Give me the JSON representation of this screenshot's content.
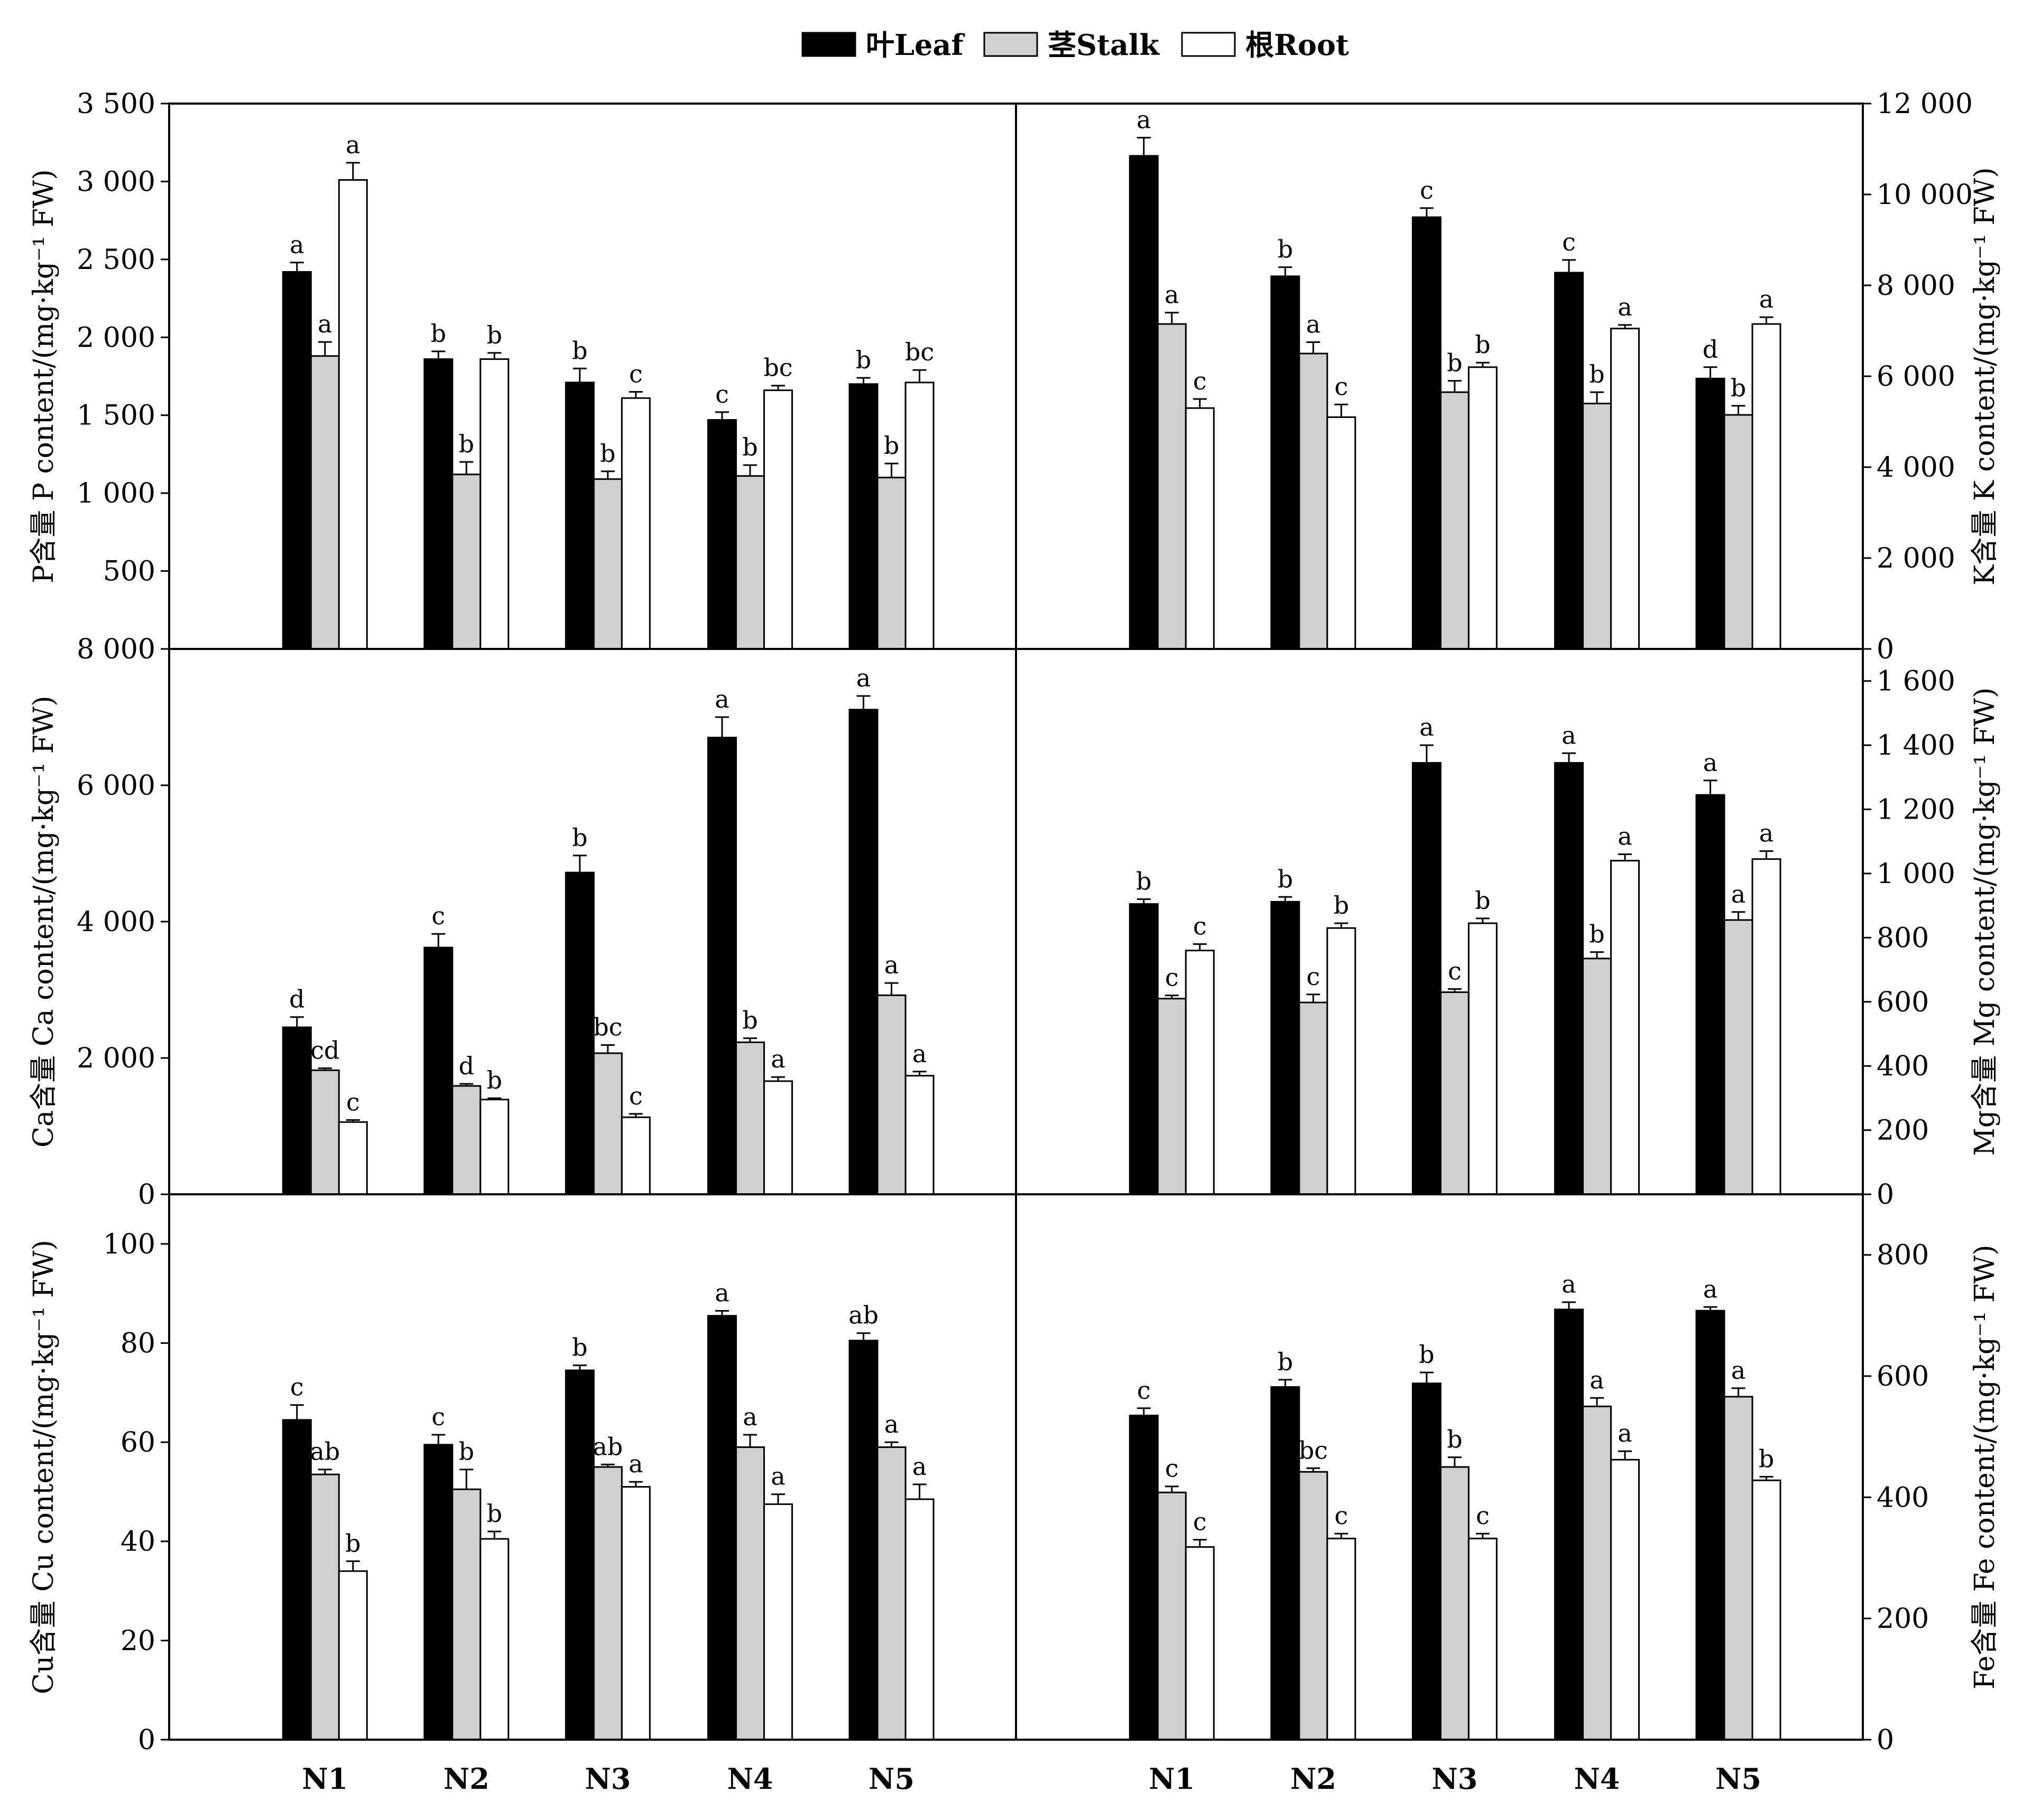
{
  "legend": [
    {
      "label": "叶Leaf",
      "color": "#000000"
    },
    {
      "label": "茎Stalk",
      "color": "#d0d0d0"
    },
    {
      "label": "根Root",
      "color": "#ffffff"
    }
  ],
  "categories": [
    "N1",
    "N2",
    "N3",
    "N4",
    "N5"
  ],
  "chart_data": [
    {
      "type": "bar",
      "panel": "P",
      "axis_side": "left",
      "ylabel": "P含量 P content/(mg·kg⁻¹ FW)",
      "ylim": [
        0,
        3500
      ],
      "ticks": [
        0,
        500,
        1000,
        1500,
        2000,
        2500,
        3000,
        3500
      ],
      "tick_labels": [
        "0",
        "500",
        "1 000",
        "1 500",
        "2 000",
        "2 500",
        "3 000",
        "3 500"
      ],
      "categories": [
        "N1",
        "N2",
        "N3",
        "N4",
        "N5"
      ],
      "series": [
        {
          "name": "叶Leaf",
          "values": [
            2420,
            1860,
            1710,
            1470,
            1700
          ],
          "errors": [
            60,
            50,
            90,
            50,
            40
          ],
          "sig": [
            "a",
            "b",
            "b",
            "c",
            "b"
          ]
        },
        {
          "name": "茎Stalk",
          "values": [
            1880,
            1120,
            1090,
            1110,
            1100
          ],
          "errors": [
            90,
            80,
            50,
            70,
            90
          ],
          "sig": [
            "a",
            "b",
            "b",
            "b",
            "b"
          ]
        },
        {
          "name": "根Root",
          "values": [
            3010,
            1860,
            1610,
            1660,
            1710
          ],
          "errors": [
            110,
            40,
            40,
            30,
            80
          ],
          "sig": [
            "a",
            "b",
            "c",
            "bc",
            "bc"
          ]
        }
      ]
    },
    {
      "type": "bar",
      "panel": "K",
      "axis_side": "right",
      "ylabel": "K含量 K content/(mg·kg⁻¹ FW)",
      "ylim": [
        0,
        12000
      ],
      "ticks": [
        0,
        2000,
        4000,
        6000,
        8000,
        10000,
        12000
      ],
      "tick_labels": [
        "0",
        "2 000",
        "4 000",
        "6 000",
        "8 000",
        "10 000",
        "12 000"
      ],
      "categories": [
        "N1",
        "N2",
        "N3",
        "N4",
        "N5"
      ],
      "series": [
        {
          "name": "叶Leaf",
          "values": [
            10850,
            8200,
            9500,
            8280,
            5950
          ],
          "errors": [
            400,
            200,
            200,
            280,
            250
          ],
          "sig": [
            "a",
            "b",
            "c",
            "c",
            "d"
          ]
        },
        {
          "name": "茎Stalk",
          "values": [
            7150,
            6500,
            5650,
            5400,
            5150
          ],
          "errors": [
            250,
            250,
            250,
            250,
            200
          ],
          "sig": [
            "a",
            "a",
            "b",
            "b",
            "b"
          ]
        },
        {
          "name": "根Root",
          "values": [
            5300,
            5100,
            6200,
            7050,
            7150
          ],
          "errors": [
            200,
            280,
            100,
            80,
            150
          ],
          "sig": [
            "c",
            "c",
            "b",
            "a",
            "a"
          ]
        }
      ]
    },
    {
      "type": "bar",
      "panel": "Ca",
      "axis_side": "left",
      "ylabel": "Ca含量 Ca content/(mg·kg⁻¹ FW)",
      "ylim": [
        0,
        8000
      ],
      "ticks": [
        0,
        2000,
        4000,
        6000,
        8000
      ],
      "tick_labels": [
        "0",
        "2 000",
        "4 000",
        "6 000",
        "8 000"
      ],
      "categories": [
        "N1",
        "N2",
        "N3",
        "N4",
        "N5"
      ],
      "series": [
        {
          "name": "叶Leaf",
          "values": [
            2450,
            3620,
            4720,
            6700,
            7110
          ],
          "errors": [
            150,
            200,
            250,
            300,
            200
          ],
          "sig": [
            "d",
            "c",
            "b",
            "a",
            "a"
          ]
        },
        {
          "name": "茎Stalk",
          "values": [
            1820,
            1590,
            2070,
            2230,
            2920
          ],
          "errors": [
            30,
            30,
            120,
            60,
            180
          ],
          "sig": [
            "cd",
            "d",
            "bc",
            "b",
            "a"
          ]
        },
        {
          "name": "根Root",
          "values": [
            1060,
            1390,
            1130,
            1660,
            1740
          ],
          "errors": [
            30,
            20,
            50,
            60,
            60
          ],
          "sig": [
            "c",
            "b",
            "c",
            "a",
            "a"
          ]
        }
      ]
    },
    {
      "type": "bar",
      "panel": "Mg",
      "axis_side": "right",
      "ylabel": "Mg含量 Mg content/(mg·kg⁻¹ FW)",
      "ylim": [
        0,
        1700
      ],
      "ticks": [
        0,
        200,
        400,
        600,
        800,
        1000,
        1200,
        1400,
        1600
      ],
      "tick_labels": [
        "0",
        "200",
        "400",
        "600",
        "800",
        "1 000",
        "1 200",
        "1 400",
        "1 600"
      ],
      "categories": [
        "N1",
        "N2",
        "N3",
        "N4",
        "N5"
      ],
      "series": [
        {
          "name": "叶Leaf",
          "values": [
            905,
            912,
            1345,
            1345,
            1245
          ],
          "errors": [
            15,
            15,
            55,
            30,
            45
          ],
          "sig": [
            "b",
            "b",
            "a",
            "a",
            "a"
          ]
        },
        {
          "name": "茎Stalk",
          "values": [
            610,
            598,
            630,
            735,
            855
          ],
          "errors": [
            10,
            25,
            10,
            20,
            25
          ],
          "sig": [
            "c",
            "c",
            "c",
            "b",
            "a"
          ]
        },
        {
          "name": "根Root",
          "values": [
            760,
            830,
            845,
            1040,
            1045
          ],
          "errors": [
            20,
            15,
            15,
            20,
            25
          ],
          "sig": [
            "c",
            "b",
            "b",
            "a",
            "a"
          ]
        }
      ]
    },
    {
      "type": "bar",
      "panel": "Cu",
      "axis_side": "left",
      "ylabel": "Cu含量 Cu content/(mg·kg⁻¹ FW)",
      "ylim": [
        0,
        110
      ],
      "ticks": [
        0,
        20,
        40,
        60,
        80,
        100
      ],
      "tick_labels": [
        "0",
        "20",
        "40",
        "60",
        "80",
        "100"
      ],
      "categories": [
        "N1",
        "N2",
        "N3",
        "N4",
        "N5"
      ],
      "series": [
        {
          "name": "叶Leaf",
          "values": [
            64.5,
            59.5,
            74.5,
            85.5,
            80.5
          ],
          "errors": [
            3.0,
            2.0,
            1.0,
            1.0,
            1.5
          ],
          "sig": [
            "c",
            "c",
            "b",
            "a",
            "ab"
          ]
        },
        {
          "name": "茎Stalk",
          "values": [
            53.5,
            50.5,
            55.0,
            59.0,
            59.0
          ],
          "errors": [
            1.0,
            4.0,
            0.5,
            2.5,
            1.0
          ],
          "sig": [
            "ab",
            "b",
            "ab",
            "a",
            "a"
          ]
        },
        {
          "name": "根Root",
          "values": [
            34.0,
            40.5,
            51.0,
            47.5,
            48.5
          ],
          "errors": [
            2.0,
            1.5,
            1.0,
            2.0,
            3.0
          ],
          "sig": [
            "b",
            "b",
            "a",
            "a",
            "a"
          ]
        }
      ]
    },
    {
      "type": "bar",
      "panel": "Fe",
      "axis_side": "right",
      "ylabel": "Fe含量 Fe content/(mg·kg⁻¹ FW)",
      "ylim": [
        0,
        900
      ],
      "ticks": [
        0,
        200,
        400,
        600,
        800
      ],
      "tick_labels": [
        "0",
        "200",
        "400",
        "600",
        "800"
      ],
      "categories": [
        "N1",
        "N2",
        "N3",
        "N4",
        "N5"
      ],
      "series": [
        {
          "name": "叶Leaf",
          "values": [
            535,
            582,
            588,
            710,
            708
          ],
          "errors": [
            12,
            12,
            18,
            12,
            6
          ],
          "sig": [
            "c",
            "b",
            "b",
            "a",
            "a"
          ]
        },
        {
          "name": "茎Stalk",
          "values": [
            408,
            442,
            450,
            550,
            566
          ],
          "errors": [
            10,
            6,
            16,
            14,
            14
          ],
          "sig": [
            "c",
            "bc",
            "b",
            "a",
            "a"
          ]
        },
        {
          "name": "根Root",
          "values": [
            318,
            332,
            332,
            462,
            428
          ],
          "errors": [
            12,
            8,
            8,
            14,
            6
          ],
          "sig": [
            "c",
            "c",
            "c",
            "a",
            "b"
          ]
        }
      ]
    }
  ]
}
